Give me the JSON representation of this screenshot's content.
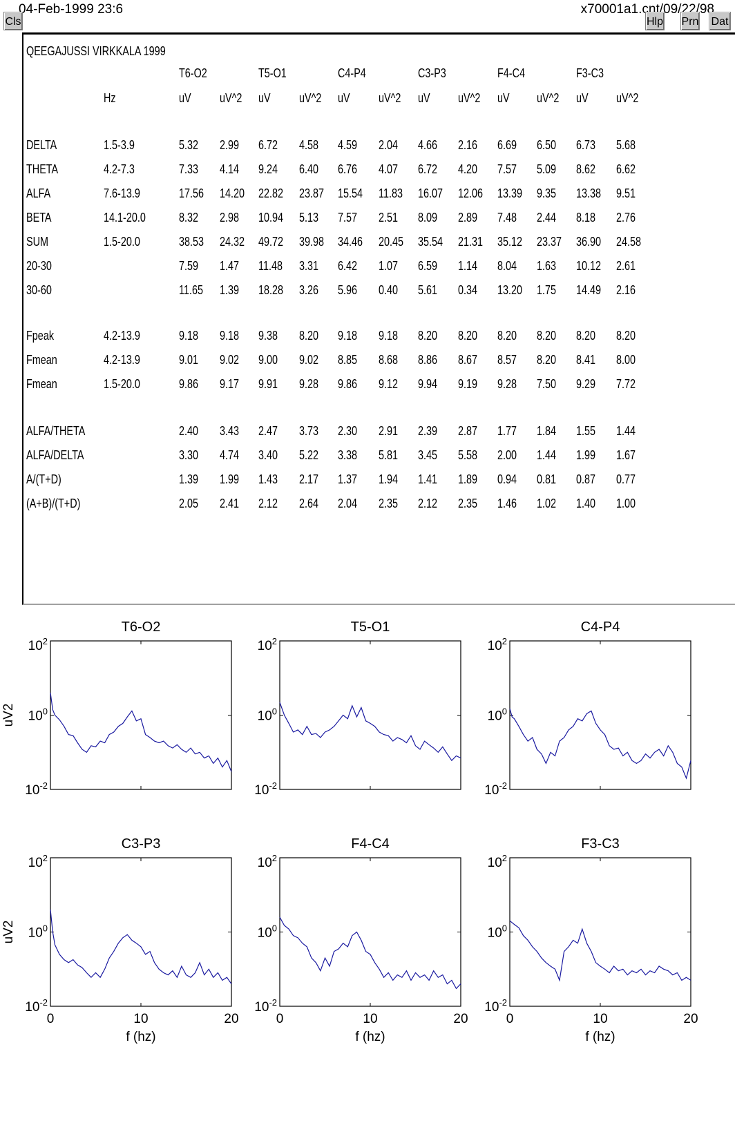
{
  "header": {
    "datetime": "04-Feb-1999 23:6",
    "file": "x70001a1.cnt/09/22/98",
    "buttons": {
      "cls": "Cls",
      "hlp": "Hlp",
      "prn": "Prn",
      "dat": "Dat"
    }
  },
  "table": {
    "title": "QEEGAJUSSI VIRKKALA 1999",
    "channels": [
      "T6-O2",
      "T5-O1",
      "C4-P4",
      "C3-P3",
      "F4-C4",
      "F3-C3"
    ],
    "units_header": [
      "Hz",
      "uV",
      "uV^2",
      "uV",
      "uV^2",
      "uV",
      "uV^2",
      "uV",
      "uV^2",
      "uV",
      "uV^2",
      "uV",
      "uV^2"
    ],
    "groups": [
      [
        [
          "DELTA",
          "1.5-3.9",
          "5.32",
          "2.99",
          "6.72",
          "4.58",
          "4.59",
          "2.04",
          "4.66",
          "2.16",
          "6.69",
          "6.50",
          "6.73",
          "5.68"
        ],
        [
          "THETA",
          "4.2-7.3",
          "7.33",
          "4.14",
          "9.24",
          "6.40",
          "6.76",
          "4.07",
          "6.72",
          "4.20",
          "7.57",
          "5.09",
          "8.62",
          "6.62"
        ],
        [
          "ALFA",
          "7.6-13.9",
          "17.56",
          "14.20",
          "22.82",
          "23.87",
          "15.54",
          "11.83",
          "16.07",
          "12.06",
          "13.39",
          "9.35",
          "13.38",
          "9.51"
        ],
        [
          "BETA",
          "14.1-20.0",
          "8.32",
          "2.98",
          "10.94",
          "5.13",
          "7.57",
          "2.51",
          "8.09",
          "2.89",
          "7.48",
          "2.44",
          "8.18",
          "2.76"
        ],
        [
          "SUM",
          "1.5-20.0",
          "38.53",
          "24.32",
          "49.72",
          "39.98",
          "34.46",
          "20.45",
          "35.54",
          "21.31",
          "35.12",
          "23.37",
          "36.90",
          "24.58"
        ],
        [
          "20-30",
          "",
          "7.59",
          "1.47",
          "11.48",
          "3.31",
          "6.42",
          "1.07",
          "6.59",
          "1.14",
          "8.04",
          "1.63",
          "10.12",
          "2.61"
        ],
        [
          "30-60",
          "",
          "11.65",
          "1.39",
          "18.28",
          "3.26",
          "5.96",
          "0.40",
          "5.61",
          "0.34",
          "13.20",
          "1.75",
          "14.49",
          "2.16"
        ]
      ],
      [
        [
          "Fpeak",
          "4.2-13.9",
          "9.18",
          "9.18",
          "9.38",
          "8.20",
          "9.18",
          "9.18",
          "8.20",
          "8.20",
          "8.20",
          "8.20",
          "8.20",
          "8.20"
        ],
        [
          "Fmean",
          "4.2-13.9",
          "9.01",
          "9.02",
          "9.00",
          "9.02",
          "8.85",
          "8.68",
          "8.86",
          "8.67",
          "8.57",
          "8.20",
          "8.41",
          "8.00"
        ],
        [
          "Fmean",
          "1.5-20.0",
          "9.86",
          "9.17",
          "9.91",
          "9.28",
          "9.86",
          "9.12",
          "9.94",
          "9.19",
          "9.28",
          "7.50",
          "9.29",
          "7.72"
        ]
      ],
      [
        [
          "ALFA/THETA",
          "",
          "2.40",
          "3.43",
          "2.47",
          "3.73",
          "2.30",
          "2.91",
          "2.39",
          "2.87",
          "1.77",
          "1.84",
          "1.55",
          "1.44"
        ],
        [
          "ALFA/DELTA",
          "",
          "3.30",
          "4.74",
          "3.40",
          "5.22",
          "3.38",
          "5.81",
          "3.45",
          "5.58",
          "2.00",
          "1.44",
          "1.99",
          "1.67"
        ],
        [
          "A/(T+D)",
          "",
          "1.39",
          "1.99",
          "1.43",
          "2.17",
          "1.37",
          "1.94",
          "1.41",
          "1.89",
          "0.94",
          "0.81",
          "0.87",
          "0.77"
        ],
        [
          "(A+B)/(T+D)",
          "",
          "2.05",
          "2.41",
          "2.12",
          "2.64",
          "2.04",
          "2.35",
          "2.12",
          "2.35",
          "1.46",
          "1.02",
          "1.40",
          "1.00"
        ]
      ]
    ]
  },
  "chart_data": [
    {
      "type": "line",
      "title": "T6-O2",
      "xlabel": "",
      "ylabel": "uV2",
      "xlim": [
        0,
        20
      ],
      "ylim": [
        0.01,
        100
      ],
      "yscale": "log",
      "yticks": [
        "10^2",
        "10^0",
        "10^-2"
      ],
      "xticks": [],
      "x": [
        0,
        0.25,
        0.5,
        1,
        1.5,
        2,
        2.5,
        3,
        3.5,
        4,
        4.5,
        5,
        5.5,
        6,
        6.5,
        7,
        7.5,
        8,
        8.5,
        9,
        9.5,
        10,
        10.5,
        11,
        11.5,
        12,
        12.5,
        13,
        13.5,
        14,
        14.5,
        15,
        15.5,
        16,
        16.5,
        17,
        17.5,
        18,
        18.5,
        19,
        19.5,
        20
      ],
      "y": [
        4,
        1.4,
        1.0,
        0.75,
        0.5,
        0.3,
        0.28,
        0.18,
        0.12,
        0.1,
        0.15,
        0.14,
        0.2,
        0.18,
        0.3,
        0.35,
        0.5,
        0.6,
        0.9,
        1.3,
        0.7,
        0.8,
        0.3,
        0.25,
        0.2,
        0.18,
        0.2,
        0.15,
        0.13,
        0.16,
        0.12,
        0.1,
        0.13,
        0.09,
        0.1,
        0.07,
        0.08,
        0.05,
        0.07,
        0.04,
        0.06,
        0.03
      ],
      "color": "#1a1aa0"
    },
    {
      "type": "line",
      "title": "T5-O1",
      "xlabel": "",
      "ylabel": "",
      "xlim": [
        0,
        20
      ],
      "ylim": [
        0.01,
        100
      ],
      "yscale": "log",
      "yticks": [
        "10^2",
        "10^0",
        "10^-2"
      ],
      "xticks": [],
      "x": [
        0,
        0.5,
        1,
        1.5,
        2,
        2.5,
        3,
        3.5,
        4,
        4.5,
        5,
        5.5,
        6,
        6.5,
        7,
        7.5,
        8,
        8.5,
        9,
        9.5,
        10,
        10.5,
        11,
        11.5,
        12,
        12.5,
        13,
        13.5,
        14,
        14.5,
        15,
        15.5,
        16,
        16.5,
        17,
        17.5,
        18,
        18.5,
        19,
        19.5,
        20
      ],
      "y": [
        2.2,
        1.0,
        0.6,
        0.35,
        0.4,
        0.3,
        0.5,
        0.3,
        0.32,
        0.25,
        0.35,
        0.4,
        0.5,
        0.7,
        1.0,
        0.8,
        1.8,
        0.9,
        1.6,
        0.7,
        0.6,
        0.5,
        0.35,
        0.3,
        0.28,
        0.2,
        0.25,
        0.22,
        0.18,
        0.28,
        0.15,
        0.12,
        0.2,
        0.16,
        0.13,
        0.1,
        0.14,
        0.09,
        0.06,
        0.08,
        0.07
      ],
      "color": "#1a1aa0"
    },
    {
      "type": "line",
      "title": "C4-P4",
      "xlabel": "",
      "ylabel": "",
      "xlim": [
        0,
        20
      ],
      "ylim": [
        0.01,
        100
      ],
      "yscale": "log",
      "yticks": [
        "10^2",
        "10^0",
        "10^-2"
      ],
      "xticks": [],
      "x": [
        0,
        0.25,
        0.5,
        1,
        1.5,
        2,
        2.5,
        3,
        3.5,
        4,
        4.5,
        5,
        5.5,
        6,
        6.5,
        7,
        7.5,
        8,
        8.5,
        9,
        9.5,
        10,
        10.5,
        11,
        11.5,
        12,
        12.5,
        13,
        13.5,
        14,
        14.5,
        15,
        15.5,
        16,
        16.5,
        17,
        17.5,
        18,
        18.5,
        19,
        19.5,
        20
      ],
      "y": [
        1.5,
        0.9,
        0.8,
        0.5,
        0.3,
        0.2,
        0.25,
        0.12,
        0.09,
        0.05,
        0.1,
        0.08,
        0.2,
        0.25,
        0.4,
        0.5,
        0.8,
        0.7,
        1.1,
        1.3,
        0.6,
        0.4,
        0.3,
        0.15,
        0.12,
        0.13,
        0.08,
        0.1,
        0.06,
        0.05,
        0.06,
        0.09,
        0.07,
        0.1,
        0.12,
        0.08,
        0.15,
        0.1,
        0.05,
        0.04,
        0.02,
        0.06
      ],
      "color": "#1a1aa0"
    },
    {
      "type": "line",
      "title": "C3-P3",
      "xlabel": "f (hz)",
      "ylabel": "uV2",
      "xlim": [
        0,
        20
      ],
      "ylim": [
        0.01,
        100
      ],
      "yscale": "log",
      "yticks": [
        "10^2",
        "10^0",
        "10^-2"
      ],
      "xticks": [
        "0",
        "10",
        "20"
      ],
      "x": [
        0,
        0.25,
        0.5,
        1,
        1.5,
        2,
        2.5,
        3,
        3.5,
        4,
        4.5,
        5,
        5.5,
        6,
        6.5,
        7,
        7.5,
        8,
        8.5,
        9,
        9.5,
        10,
        10.5,
        11,
        11.5,
        12,
        12.5,
        13,
        13.5,
        14,
        14.5,
        15,
        15.5,
        16,
        16.5,
        17,
        17.5,
        18,
        18.5,
        19,
        19.5,
        20
      ],
      "y": [
        4,
        1.0,
        0.45,
        0.25,
        0.18,
        0.15,
        0.18,
        0.13,
        0.11,
        0.08,
        0.06,
        0.08,
        0.06,
        0.1,
        0.2,
        0.3,
        0.5,
        0.7,
        0.85,
        0.6,
        0.5,
        0.4,
        0.25,
        0.3,
        0.15,
        0.1,
        0.08,
        0.07,
        0.09,
        0.06,
        0.12,
        0.07,
        0.06,
        0.08,
        0.15,
        0.07,
        0.1,
        0.06,
        0.08,
        0.05,
        0.06,
        0.04
      ],
      "color": "#1a1aa0"
    },
    {
      "type": "line",
      "title": "F4-C4",
      "xlabel": "f (hz)",
      "ylabel": "",
      "xlim": [
        0,
        20
      ],
      "ylim": [
        0.01,
        100
      ],
      "yscale": "log",
      "yticks": [
        "10^2",
        "10^0",
        "10^-2"
      ],
      "xticks": [
        "0",
        "10",
        "20"
      ],
      "x": [
        0,
        0.5,
        1,
        1.5,
        2,
        2.5,
        3,
        3.5,
        4,
        4.5,
        5,
        5.5,
        6,
        6.5,
        7,
        7.5,
        8,
        8.5,
        9,
        9.5,
        10,
        10.5,
        11,
        11.5,
        12,
        12.5,
        13,
        13.5,
        14,
        14.5,
        15,
        15.5,
        16,
        16.5,
        17,
        17.5,
        18,
        18.5,
        19,
        19.5,
        20
      ],
      "y": [
        2.5,
        1.5,
        1.2,
        0.8,
        0.7,
        0.5,
        0.4,
        0.2,
        0.15,
        0.09,
        0.2,
        0.12,
        0.3,
        0.35,
        0.5,
        0.4,
        0.8,
        1.0,
        0.6,
        0.3,
        0.25,
        0.15,
        0.1,
        0.06,
        0.08,
        0.05,
        0.07,
        0.06,
        0.09,
        0.05,
        0.08,
        0.06,
        0.07,
        0.05,
        0.09,
        0.06,
        0.07,
        0.04,
        0.05,
        0.03,
        0.04
      ],
      "color": "#1a1aa0"
    },
    {
      "type": "line",
      "title": "F3-C3",
      "xlabel": "f (hz)",
      "ylabel": "",
      "xlim": [
        0,
        20
      ],
      "ylim": [
        0.01,
        100
      ],
      "yscale": "log",
      "yticks": [
        "10^2",
        "10^0",
        "10^-2"
      ],
      "xticks": [
        "0",
        "10",
        "20"
      ],
      "x": [
        0,
        0.5,
        1,
        1.5,
        2,
        2.5,
        3,
        3.5,
        4,
        4.5,
        5,
        5.5,
        6,
        6.5,
        7,
        7.5,
        8,
        8.5,
        9,
        9.5,
        10,
        10.5,
        11,
        11.5,
        12,
        12.5,
        13,
        13.5,
        14,
        14.5,
        15,
        15.5,
        16,
        16.5,
        17,
        17.5,
        18,
        18.5,
        19,
        19.5,
        20
      ],
      "y": [
        2.0,
        1.6,
        1.3,
        0.8,
        0.6,
        0.4,
        0.3,
        0.2,
        0.15,
        0.12,
        0.1,
        0.05,
        0.3,
        0.4,
        0.6,
        0.5,
        1.2,
        0.5,
        0.3,
        0.15,
        0.12,
        0.1,
        0.08,
        0.12,
        0.09,
        0.1,
        0.07,
        0.09,
        0.08,
        0.1,
        0.07,
        0.09,
        0.08,
        0.12,
        0.1,
        0.09,
        0.07,
        0.08,
        0.05,
        0.06,
        0.05
      ],
      "color": "#1a1aa0"
    }
  ]
}
